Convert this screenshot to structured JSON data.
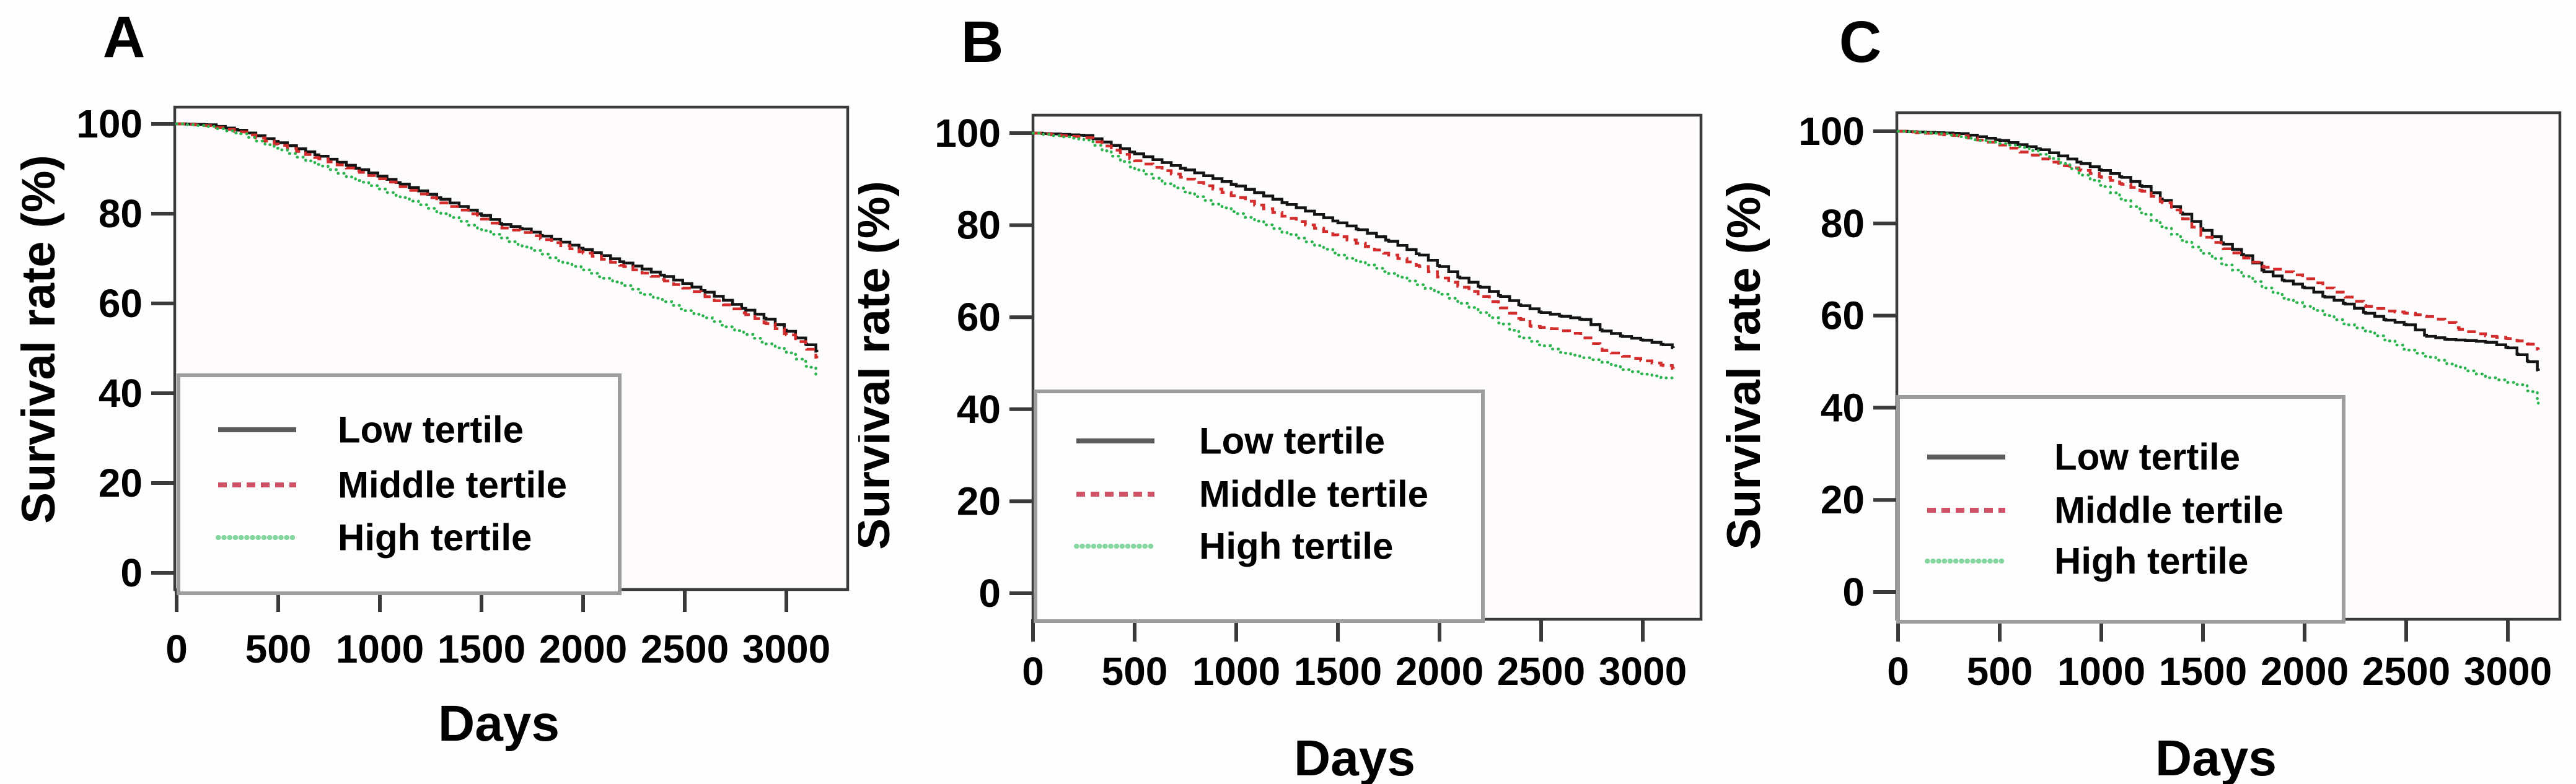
{
  "figure_title": "",
  "palette": {
    "page_background": "#fffefe",
    "plot_background": "#fdfbfc",
    "frame_color": "#3a3a3a",
    "tick_color": "#3a3a3a",
    "text_color": "#000000",
    "legend_border_color": "#9d9d9d",
    "legend_background": "#fefdfd",
    "low_curve_color": "#141414",
    "middle_curve_color": "#d22c2c",
    "high_curve_color": "#2db44e",
    "legend_low_color": "#5c5c5c",
    "legend_middle_color": "#d05266",
    "legend_high_color": "#86d6a2"
  },
  "chart_data": [
    {
      "type": "line",
      "panel_label": "A",
      "title": "",
      "xlabel": "Days",
      "ylabel": "Survival rate (%)",
      "xlim": [
        0,
        3240
      ],
      "ylim": [
        0,
        104
      ],
      "x_ticks": [
        0,
        500,
        1000,
        1500,
        2000,
        2500,
        3000
      ],
      "y_ticks": [
        0,
        20,
        40,
        60,
        80,
        100
      ],
      "grid": false,
      "legend_position": "bottom-left",
      "series": [
        {
          "name": "Low tertile",
          "line_style": "solid",
          "color": "#141414",
          "points": [
            [
              0,
              100
            ],
            [
              150,
              99.8
            ],
            [
              300,
              98.6
            ],
            [
              500,
              95.8
            ],
            [
              700,
              92.8
            ],
            [
              900,
              89.8
            ],
            [
              1100,
              86.6
            ],
            [
              1300,
              83.2
            ],
            [
              1500,
              79.6
            ],
            [
              1600,
              77.6
            ],
            [
              1700,
              76.6
            ],
            [
              1800,
              75.0
            ],
            [
              2000,
              72.0
            ],
            [
              2200,
              69.0
            ],
            [
              2400,
              66.0
            ],
            [
              2600,
              62.5
            ],
            [
              2800,
              58.5
            ],
            [
              2900,
              56.5
            ],
            [
              3000,
              53.8
            ],
            [
              3050,
              52.3
            ],
            [
              3100,
              50.8
            ],
            [
              3150,
              49.2
            ]
          ]
        },
        {
          "name": "Middle tertile",
          "line_style": "dashed",
          "color": "#d22c2c",
          "points": [
            [
              0,
              100
            ],
            [
              150,
              99.6
            ],
            [
              300,
              98.2
            ],
            [
              500,
              95.2
            ],
            [
              700,
              92.2
            ],
            [
              900,
              89.2
            ],
            [
              1100,
              86.0
            ],
            [
              1300,
              82.4
            ],
            [
              1500,
              78.8
            ],
            [
              1600,
              76.8
            ],
            [
              1700,
              75.8
            ],
            [
              1800,
              74.2
            ],
            [
              2000,
              71.2
            ],
            [
              2200,
              68.2
            ],
            [
              2400,
              65.0
            ],
            [
              2600,
              61.5
            ],
            [
              2800,
              57.5
            ],
            [
              2900,
              55.5
            ],
            [
              3000,
              53.0
            ],
            [
              3050,
              51.5
            ],
            [
              3100,
              49.8
            ],
            [
              3150,
              47.8
            ]
          ]
        },
        {
          "name": "High tertile",
          "line_style": "dotted",
          "color": "#2db44e",
          "points": [
            [
              0,
              100
            ],
            [
              150,
              99.4
            ],
            [
              300,
              97.8
            ],
            [
              500,
              94.2
            ],
            [
              700,
              90.6
            ],
            [
              900,
              87.0
            ],
            [
              1100,
              83.6
            ],
            [
              1300,
              80.0
            ],
            [
              1500,
              76.2
            ],
            [
              1700,
              72.6
            ],
            [
              1900,
              69.0
            ],
            [
              2100,
              65.6
            ],
            [
              2300,
              62.0
            ],
            [
              2500,
              58.4
            ],
            [
              2700,
              54.8
            ],
            [
              2900,
              51.0
            ],
            [
              3000,
              49.0
            ],
            [
              3050,
              47.6
            ],
            [
              3100,
              45.8
            ],
            [
              3150,
              43.6
            ]
          ]
        }
      ]
    },
    {
      "type": "line",
      "panel_label": "B",
      "title": "",
      "xlabel": "Days",
      "ylabel": "Survival rate (%)",
      "xlim": [
        0,
        3240
      ],
      "ylim": [
        0,
        104
      ],
      "x_ticks": [
        0,
        500,
        1000,
        1500,
        2000,
        2500,
        3000
      ],
      "y_ticks": [
        0,
        20,
        40,
        60,
        80,
        100
      ],
      "grid": false,
      "legend_position": "bottom-left",
      "series": [
        {
          "name": "Low tertile",
          "line_style": "solid",
          "color": "#141414",
          "points": [
            [
              0,
              100
            ],
            [
              250,
              99.5
            ],
            [
              500,
              95.5
            ],
            [
              750,
              92.0
            ],
            [
              1000,
              88.5
            ],
            [
              1250,
              84.5
            ],
            [
              1500,
              80.5
            ],
            [
              1600,
              79.0
            ],
            [
              1750,
              76.5
            ],
            [
              1900,
              73.5
            ],
            [
              2000,
              71.0
            ],
            [
              2100,
              68.5
            ],
            [
              2200,
              66.5
            ],
            [
              2300,
              64.5
            ],
            [
              2400,
              62.5
            ],
            [
              2500,
              61.0
            ],
            [
              2600,
              60.2
            ],
            [
              2700,
              59.5
            ],
            [
              2800,
              57.0
            ],
            [
              2900,
              55.8
            ],
            [
              3000,
              55.0
            ],
            [
              3100,
              54.0
            ],
            [
              3150,
              53.3
            ]
          ]
        },
        {
          "name": "Middle tertile",
          "line_style": "dashed",
          "color": "#d22c2c",
          "points": [
            [
              0,
              100
            ],
            [
              250,
              99.0
            ],
            [
              500,
              94.0
            ],
            [
              750,
              90.0
            ],
            [
              1000,
              86.0
            ],
            [
              1250,
              81.5
            ],
            [
              1500,
              77.5
            ],
            [
              1750,
              73.5
            ],
            [
              1900,
              71.0
            ],
            [
              2000,
              68.5
            ],
            [
              2100,
              66.5
            ],
            [
              2200,
              64.5
            ],
            [
              2300,
              62.0
            ],
            [
              2400,
              59.5
            ],
            [
              2450,
              58.0
            ],
            [
              2550,
              57.5
            ],
            [
              2650,
              56.5
            ],
            [
              2700,
              55.5
            ],
            [
              2800,
              52.8
            ],
            [
              2900,
              51.5
            ],
            [
              3000,
              50.5
            ],
            [
              3100,
              49.5
            ],
            [
              3150,
              48.8
            ]
          ]
        },
        {
          "name": "High tertile",
          "line_style": "dotted",
          "color": "#2db44e",
          "points": [
            [
              0,
              100
            ],
            [
              250,
              98.5
            ],
            [
              500,
              92.0
            ],
            [
              650,
              89.0
            ],
            [
              750,
              87.0
            ],
            [
              1000,
              82.5
            ],
            [
              1250,
              78.0
            ],
            [
              1500,
              73.5
            ],
            [
              1750,
              69.5
            ],
            [
              2000,
              65.0
            ],
            [
              2100,
              63.0
            ],
            [
              2200,
              61.0
            ],
            [
              2300,
              58.5
            ],
            [
              2400,
              55.5
            ],
            [
              2500,
              53.8
            ],
            [
              2600,
              52.2
            ],
            [
              2700,
              51.2
            ],
            [
              2800,
              50.2
            ],
            [
              2900,
              48.6
            ],
            [
              3000,
              47.6
            ],
            [
              3100,
              46.8
            ],
            [
              3150,
              46.2
            ]
          ]
        }
      ]
    },
    {
      "type": "line",
      "panel_label": "C",
      "title": "",
      "xlabel": "Days",
      "ylabel": "Survival rate (%)",
      "xlim": [
        0,
        3240
      ],
      "ylim": [
        0,
        104
      ],
      "x_ticks": [
        0,
        500,
        1000,
        1500,
        2000,
        2500,
        3000
      ],
      "y_ticks": [
        0,
        20,
        40,
        60,
        80,
        100
      ],
      "grid": false,
      "legend_position": "bottom-left",
      "series": [
        {
          "name": "Low tertile",
          "line_style": "solid",
          "color": "#141414",
          "points": [
            [
              0,
              100
            ],
            [
              300,
              99.5
            ],
            [
              500,
              98.0
            ],
            [
              700,
              96.0
            ],
            [
              900,
              93.0
            ],
            [
              1000,
              91.5
            ],
            [
              1100,
              90.0
            ],
            [
              1200,
              88.0
            ],
            [
              1300,
              85.0
            ],
            [
              1400,
              82.0
            ],
            [
              1500,
              78.5
            ],
            [
              1600,
              75.5
            ],
            [
              1700,
              73.0
            ],
            [
              1800,
              69.5
            ],
            [
              1900,
              67.5
            ],
            [
              2000,
              66.0
            ],
            [
              2100,
              64.0
            ],
            [
              2200,
              62.5
            ],
            [
              2300,
              60.5
            ],
            [
              2400,
              59.0
            ],
            [
              2500,
              58.0
            ],
            [
              2600,
              55.5
            ],
            [
              2700,
              54.8
            ],
            [
              2800,
              54.6
            ],
            [
              2900,
              54.2
            ],
            [
              3000,
              53.0
            ],
            [
              3050,
              51.5
            ],
            [
              3100,
              50.0
            ],
            [
              3150,
              48.0
            ]
          ]
        },
        {
          "name": "Middle tertile",
          "line_style": "dashed",
          "color": "#d22c2c",
          "points": [
            [
              0,
              100
            ],
            [
              300,
              99.0
            ],
            [
              500,
              97.0
            ],
            [
              600,
              95.5
            ],
            [
              700,
              94.0
            ],
            [
              800,
              92.5
            ],
            [
              900,
              91.5
            ],
            [
              1000,
              90.0
            ],
            [
              1100,
              88.5
            ],
            [
              1200,
              87.0
            ],
            [
              1300,
              84.5
            ],
            [
              1400,
              81.0
            ],
            [
              1500,
              77.0
            ],
            [
              1600,
              74.5
            ],
            [
              1700,
              72.5
            ],
            [
              1800,
              70.5
            ],
            [
              1900,
              69.5
            ],
            [
              2000,
              68.0
            ],
            [
              2100,
              66.0
            ],
            [
              2200,
              64.0
            ],
            [
              2300,
              62.0
            ],
            [
              2400,
              61.0
            ],
            [
              2500,
              60.5
            ],
            [
              2600,
              59.8
            ],
            [
              2700,
              58.5
            ],
            [
              2760,
              57.0
            ],
            [
              2800,
              56.5
            ],
            [
              2900,
              55.5
            ],
            [
              3000,
              55.0
            ],
            [
              3050,
              54.5
            ],
            [
              3100,
              53.8
            ],
            [
              3150,
              52.6
            ]
          ]
        },
        {
          "name": "High tertile",
          "line_style": "dotted",
          "color": "#2db44e",
          "points": [
            [
              0,
              100
            ],
            [
              200,
              99.5
            ],
            [
              400,
              98.0
            ],
            [
              600,
              96.5
            ],
            [
              700,
              95.0
            ],
            [
              800,
              93.0
            ],
            [
              900,
              90.5
            ],
            [
              1000,
              88.0
            ],
            [
              1100,
              85.0
            ],
            [
              1200,
              82.0
            ],
            [
              1300,
              79.0
            ],
            [
              1400,
              76.0
            ],
            [
              1500,
              73.5
            ],
            [
              1600,
              71.0
            ],
            [
              1700,
              68.5
            ],
            [
              1800,
              66.0
            ],
            [
              1900,
              63.5
            ],
            [
              2000,
              62.0
            ],
            [
              2100,
              60.0
            ],
            [
              2200,
              58.0
            ],
            [
              2300,
              56.5
            ],
            [
              2400,
              54.5
            ],
            [
              2500,
              52.5
            ],
            [
              2600,
              51.0
            ],
            [
              2700,
              49.5
            ],
            [
              2800,
              48.0
            ],
            [
              2900,
              46.5
            ],
            [
              3000,
              45.5
            ],
            [
              3050,
              45.0
            ],
            [
              3100,
              43.5
            ],
            [
              3150,
              41.0
            ]
          ]
        }
      ]
    }
  ]
}
